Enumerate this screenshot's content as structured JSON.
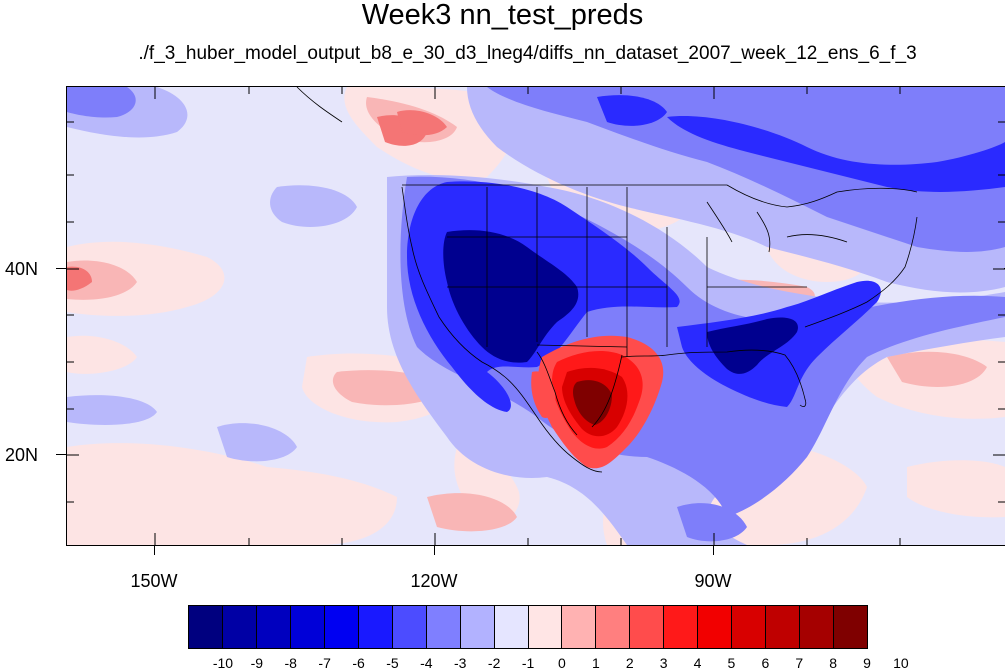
{
  "title": "Week3 nn_test_preds",
  "subtitle": "./f_3_huber_model_output_b8_e_30_d3_lneg4/diffs_nn_dataset_2007_week_12_ens_6_f_3",
  "map": {
    "projection": "cylindrical equidistant",
    "lon_range": [
      -161,
      -60
    ],
    "lat_range": [
      10,
      59
    ],
    "lat_labels": [
      "40N",
      "20N"
    ],
    "lon_labels": [
      "150W",
      "120W",
      "90W"
    ],
    "palette": [
      "#00007f",
      "#0000a5",
      "#0000bf",
      "#0000d8",
      "#0000f2",
      "#1919ff",
      "#4c4cff",
      "#7f7fff",
      "#b2b2ff",
      "#e5e5ff",
      "#ffe5e5",
      "#ffb2b2",
      "#ff7f7f",
      "#ff4c4c",
      "#ff1919",
      "#f20000",
      "#d80000",
      "#bf0000",
      "#a50000",
      "#7f0000"
    ],
    "background": "#e5e5ff"
  },
  "colorbar": {
    "labels": [
      "-10",
      "-9",
      "-8",
      "-7",
      "-6",
      "-5",
      "-4",
      "-3",
      "-2",
      "-1",
      "0",
      "1",
      "2",
      "3",
      "4",
      "5",
      "6",
      "7",
      "8",
      "9",
      "10"
    ]
  }
}
